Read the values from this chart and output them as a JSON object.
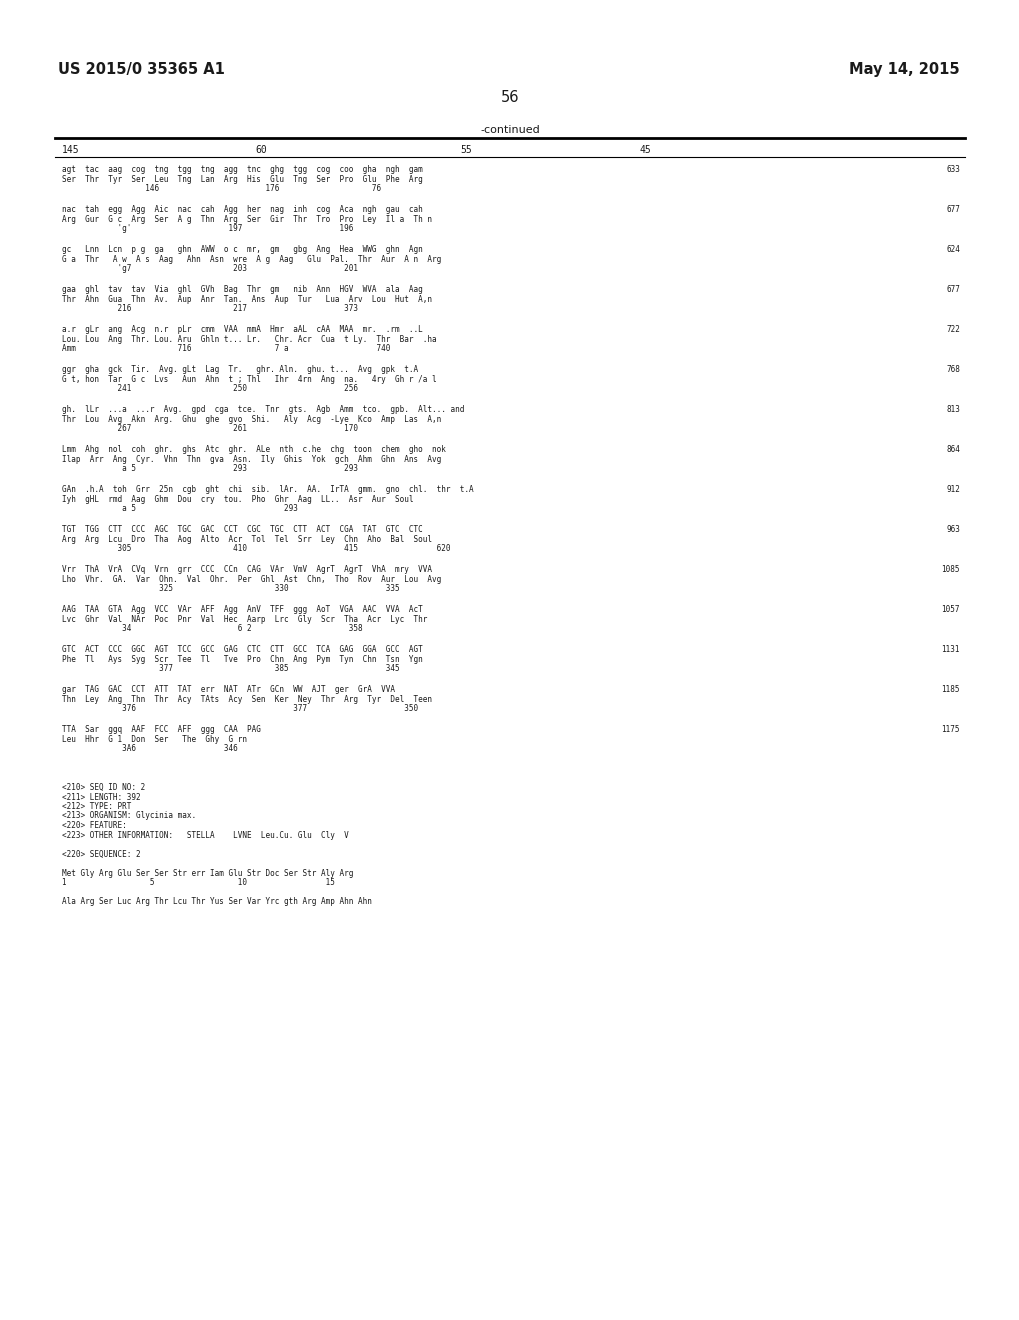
{
  "header_left": "US 2015/0 35365 A1",
  "header_right": "May 14, 2015",
  "page_number": "56",
  "table_header": "-continued",
  "col_headers": [
    "145",
    "60",
    "55",
    "45"
  ],
  "background_color": "#ffffff",
  "text_color": "#1a1a1a",
  "sequence_blocks": [
    {
      "line1": "agt  tac  aag  cog  tng  tgg  tng  agg  tnc  ghg  tgg  cog  coo  gha  ngh  gam",
      "line2": "Ser  Thr  Tyr  Ser  Leu  Tng  Lan  Arg  His  Glu  Tng  Ser  Pro  Glu  Phe  Arg",
      "line3": "                  146                       176                    76",
      "right_num": "633"
    },
    {
      "line1": "nac  tah  egg  Agg  Aic  nac  cah  Agg  her  nag  inh  cog  Aca  ngh  gau  cah",
      "line2": "Arg  Gur  G c  Arg  Ser  A g  Thn  Arg  Ser  Gir  Thr  Tro  Pro  Ley  Il a  Th n",
      "line3": "            'g'                     197                     196",
      "right_num": "677"
    },
    {
      "line1": "gc   Lnn  Lcn  p g  ga   ghn  AWW  o c  mr,  gm   gbg  Ang  Hea  WWG  ghn  Agn",
      "line2": "G a  Thr   A w  A s  Aag   Ahn  Asn  wre  A g  Aag   Glu  Pal.  Thr  Aur  A n  Arg",
      "line3": "            'g7                      203                     201",
      "right_num": "624"
    },
    {
      "line1": "gaa  ghl  tav  tav  Via  ghl  GVh  Bag  Thr  gm   nib  Ann  HGV  WVA  ala  Aag",
      "line2": "Thr  Ahn  Gua  Thn  Av.  Aup  Anr  Tan.  Ans  Aup  Tur   Lua  Arv  Lou  Hut  A,n",
      "line3": "            216                      217                     373",
      "right_num": "677"
    },
    {
      "line1": "a.r  gLr  ang  Acg  n.r  pLr  cmm  VAA  mmA  Hmr  aAL  cAA  MAA  mr.  .rm  ..L",
      "line2": "Lou. Lou  Ang  Thr. Lou. Aru  Ghln t... Lr.   Chr. Acr  Cua  t Ly.  Thr  Bar  .ha",
      "line3": "Amm                      716                  7 a                   740",
      "right_num": "722"
    },
    {
      "line1": "ggr  gha  gck  Tir.  Avg. gLt  Lag  Tr.   ghr. Aln.  ghu. t...  Avg  gpk  t.A",
      "line2": "G t, hon  Tar  G c  Lvs   Aun  Ahn  t ; Thl   Ihr  4rn  Ang  na.   4ry  Gh r /a l",
      "line3": "            241                      250                     256",
      "right_num": "768"
    },
    {
      "line1": "gh.  lLr  ...a  ...r  Avg.  gpd  cga  tce.  Tnr  gts.  Agb  Amm  tco.  gpb.  Alt... and",
      "line2": "Thr  Lou  Avg  Akn  Arg.  Ghu  ghe  gvo  Shi.   Aly  Acg  -Lye  Kco  Amp  Las  A,n",
      "line3": "            267                      261                     170",
      "right_num": "813"
    },
    {
      "line1": "Lmm  Ahg  nol  coh  ghr.  ghs  Atc  ghr.  ALe  nth  c.he  chg  toon  chem  gho  nok",
      "line2": "Ilap  Arr  Ang  Cyr.  Vhn  Thn  gva  Asn.  Ily  Ghis  Yok  gch  Ahm  Ghn  Ans  Avg",
      "line3": "             a 5                     293                     293",
      "right_num": "864"
    },
    {
      "line1": "GAn  .h.A  toh  Grr  25n  cgb  ght  chi  sib.  lAr.  AA.  IrTA  gmm.  gno  chl.  thr  t.A",
      "line2": "Iyh  gHL  rmd  Aag  Ghm  Dou  cry  tou.  Pho  Ghr  Aag  LL..  Asr  Aur  Soul",
      "line3": "             a 5                                293",
      "right_num": "912"
    },
    {
      "line1": "TGT  TGG  CTT  CCC  AGC  TGC  GAC  CCT  CGC  TGC  CTT  ACT  CGA  TAT  GTC  CTC",
      "line2": "Arg  Arg  Lcu  Dro  Tha  Aog  Alto  Acr  Tol  Tel  Srr  Ley  Chn  Aho  Bal  Soul",
      "line3": "            305                      410                     415                 620",
      "right_num": "963"
    },
    {
      "line1": "Vrr  ThA  VrA  CVq  Vrn  grr  CCC  CCn  CAG  VAr  VmV  AgrT  AgrT  VhA  mry  VVA",
      "line2": "Lho  Vhr.  GA.  Var  Ohn.  Val  Ohr.  Per  Ghl  Ast  Chn,  Tho  Rov  Aur  Lou  Avg",
      "line3": "                     325                      330                     335",
      "right_num": "1085"
    },
    {
      "line1": "AAG  TAA  GTA  Agg  VCC  VAr  AFF  Agg  AnV  TFF  ggg  AoT  VGA  AAC  VVA  AcT",
      "line2": "Lvc  Ghr  Val  NAr  Poc  Pnr  Val  Hec  Aarp  Lrc  Gly  Scr  Tha  Acr  Lyc  Thr",
      "line3": "             34                       6 2                     358",
      "right_num": "1057"
    },
    {
      "line1": "GTC  ACT  CCC  GGC  AGT  TCC  GCC  GAG  CTC  CTT  GCC  TCA  GAG  GGA  GCC  AGT",
      "line2": "Phe  Tl   Ays  Syg  Scr  Tee  Tl   Tve  Pro  Chn  Ang  Pym  Tyn  Chn  Tsn  Ygn",
      "line3": "                     377                      385                     345",
      "right_num": "1131"
    },
    {
      "line1": "gar  TAG  GAC  CCT  ATT  TAT  err  NAT  ATr  GCn  WW  AJT  ger  GrA  VVA",
      "line2": "Thn  Ley  Ang  Thn  Thr  Acy  TAts  Acy  Sen  Ker  Ney  Thr  Arg  Tyr  Del  Teen",
      "line3": "             376                                  377                     350",
      "right_num": "1185"
    },
    {
      "line1": "TTA  Sar  ggq  AAF  FCC  AFF  ggg  CAA  PAG",
      "line2": "Leu  Hhr  G 1  Don  Ser   The  Ghy  G rn",
      "line3": "             3A6                   346",
      "right_num": "1175"
    }
  ],
  "footer_lines": [
    "<210> SEQ ID NO: 2",
    "<211> LENGTH: 392",
    "<212> TYPE: PRT",
    "<213> ORGANISM: Glycinia max.",
    "<220> FEATURE:",
    "<223> OTHER INFORMATION:   STELLA    LVNE  Leu.Cu. Glu  Cly  V",
    "",
    "<220> SEQUENCE: 2",
    "",
    "Met Gly Arg Glu Ser Ser Str err Iam Glu Str Doc Ser Str Aly Arg",
    "1                  5                  10                 15",
    "",
    "Ala Arg Ser Luc Arg Thr Lcu Thr Yus Ser Var Yrc gth Arg Amp Ahn Ahn"
  ]
}
